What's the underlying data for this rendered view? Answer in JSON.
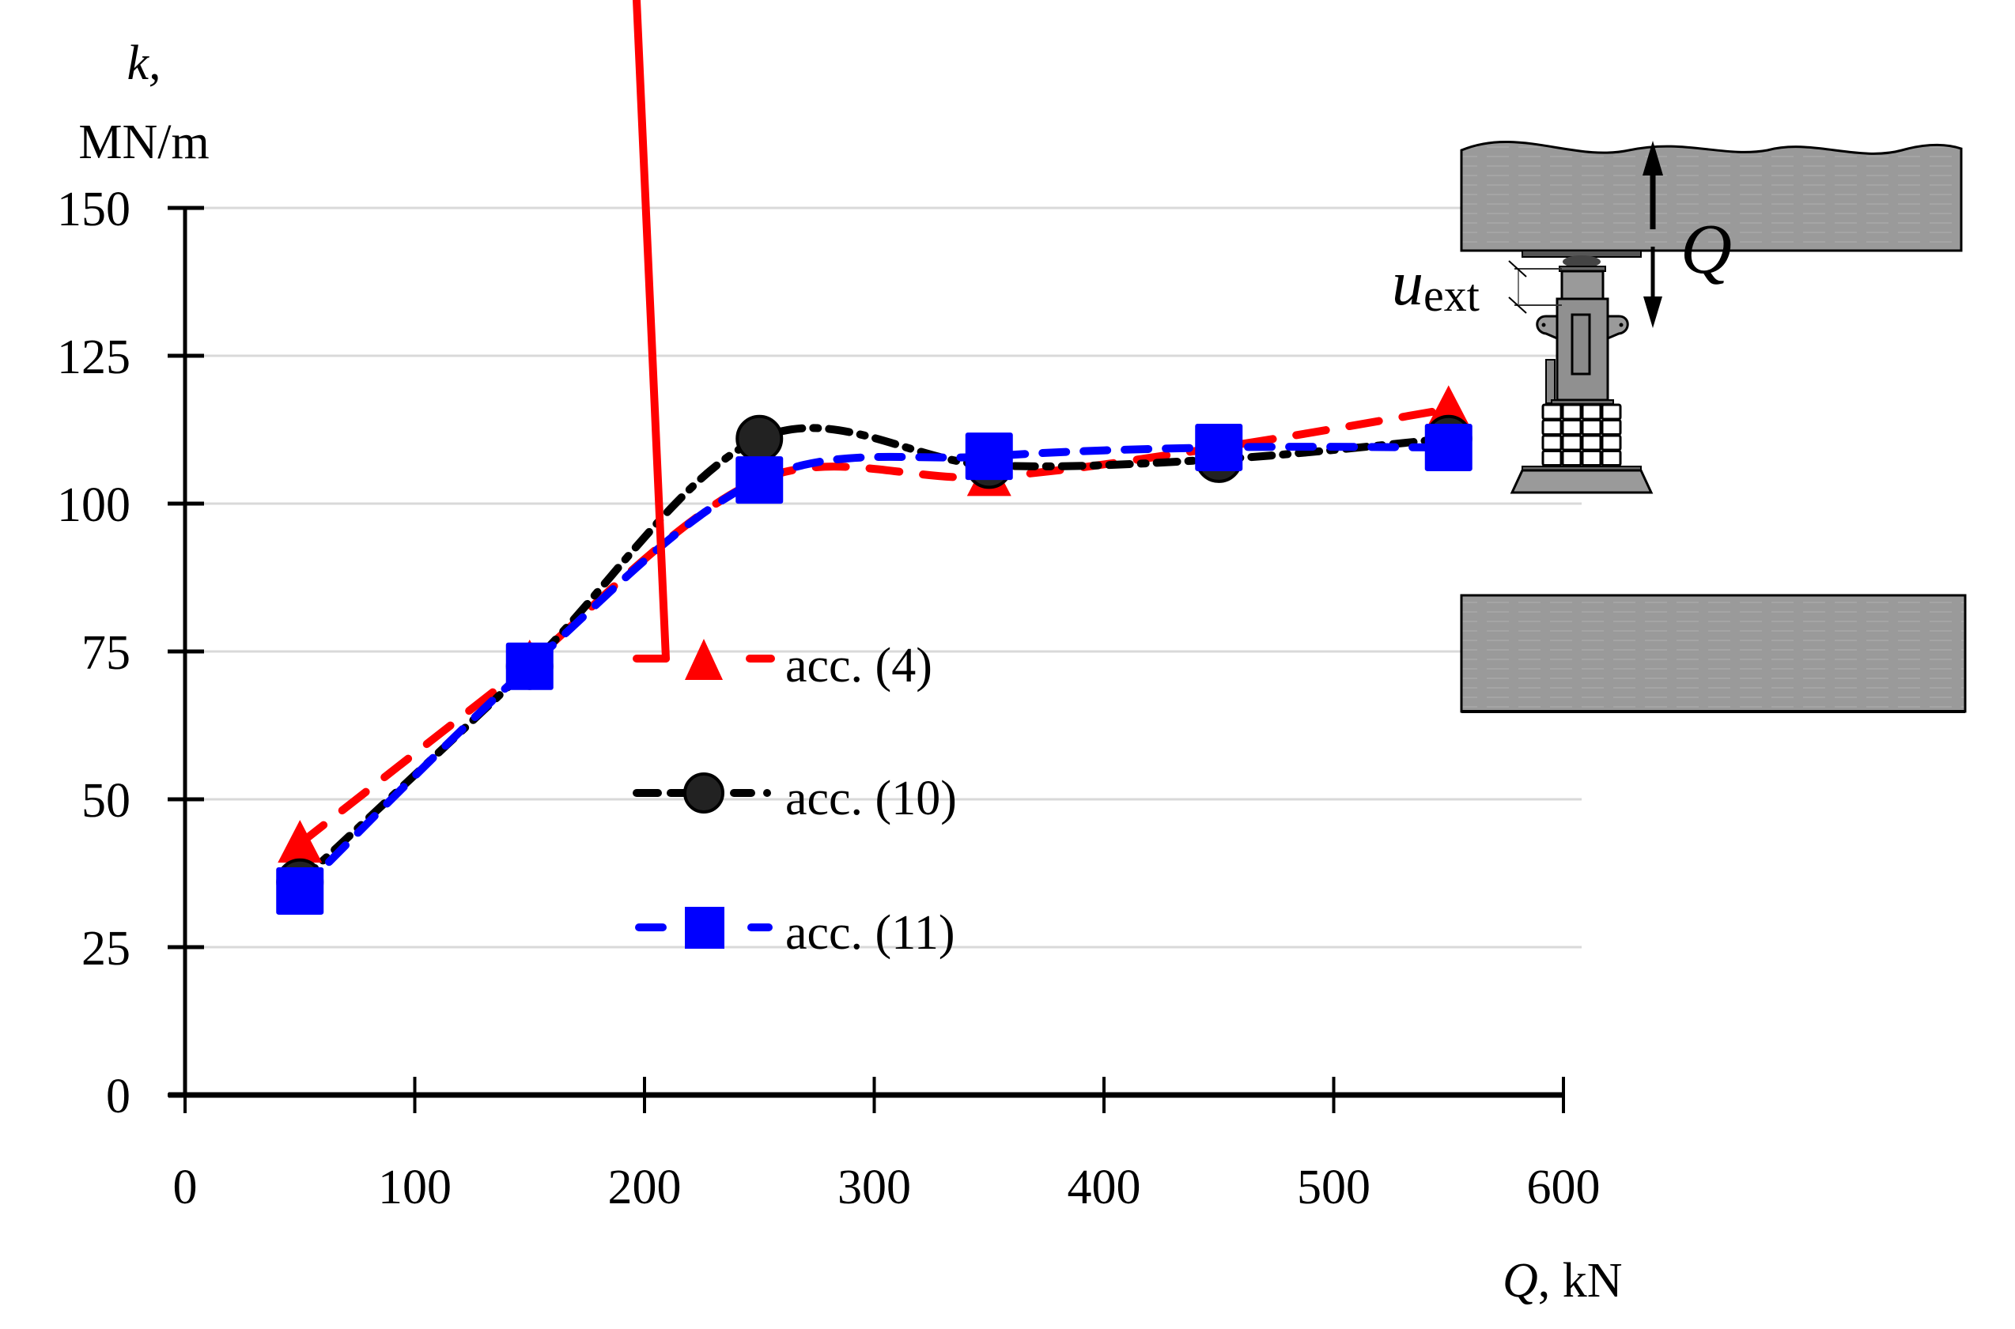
{
  "chart_data": {
    "type": "line",
    "title": "",
    "xlabel": "Q, kN",
    "ylabel": "k, MN/m",
    "ylabel_lines": [
      "k,",
      "MN/m"
    ],
    "xlim": [
      0,
      600
    ],
    "ylim": [
      0,
      150
    ],
    "x_ticks": [
      0,
      100,
      200,
      300,
      400,
      500,
      600
    ],
    "y_ticks": [
      0,
      25,
      50,
      75,
      100,
      125,
      150
    ],
    "grid": {
      "horizontal": true,
      "vertical": false,
      "color": "#d9d9d9"
    },
    "legend_position": "inside-center",
    "x": [
      50,
      150,
      250,
      350,
      450,
      550
    ],
    "series": [
      {
        "name": "acc. (4)",
        "marker": "triangle",
        "color": "#ff0000",
        "dash": "long-dash",
        "values": [
          42.5,
          73,
          104,
          104.5,
          109.5,
          116
        ]
      },
      {
        "name": "acc. (10)",
        "marker": "circle",
        "color": "#000000",
        "marker_fill": "#222222",
        "dash": "dash-dot",
        "values": [
          36,
          72.5,
          111,
          106.5,
          107.5,
          111
        ]
      },
      {
        "name": "acc. (11)",
        "marker": "square",
        "color": "#0000ff",
        "dash": "dash",
        "values": [
          34.5,
          72.5,
          104,
          108,
          109.5,
          109.5
        ]
      }
    ]
  },
  "axes": {
    "y_label_k": "k,",
    "y_label_unit": "MN/m",
    "x_label_q": "Q",
    "x_label_unit": ", kN",
    "y_tick_labels": [
      "0",
      "25",
      "50",
      "75",
      "100",
      "125",
      "150"
    ],
    "x_tick_labels": [
      "0",
      "100",
      "200",
      "300",
      "400",
      "500",
      "600"
    ]
  },
  "legend": {
    "items": [
      {
        "label": "acc. (4)"
      },
      {
        "label": "acc. (10)"
      },
      {
        "label": "acc. (11)"
      }
    ]
  },
  "diagram": {
    "displacement_label_main": "u",
    "displacement_label_sub": "ext",
    "force_label": "Q",
    "slab_color": "#9a9a9a",
    "jack_color": "#8c8c8c"
  }
}
